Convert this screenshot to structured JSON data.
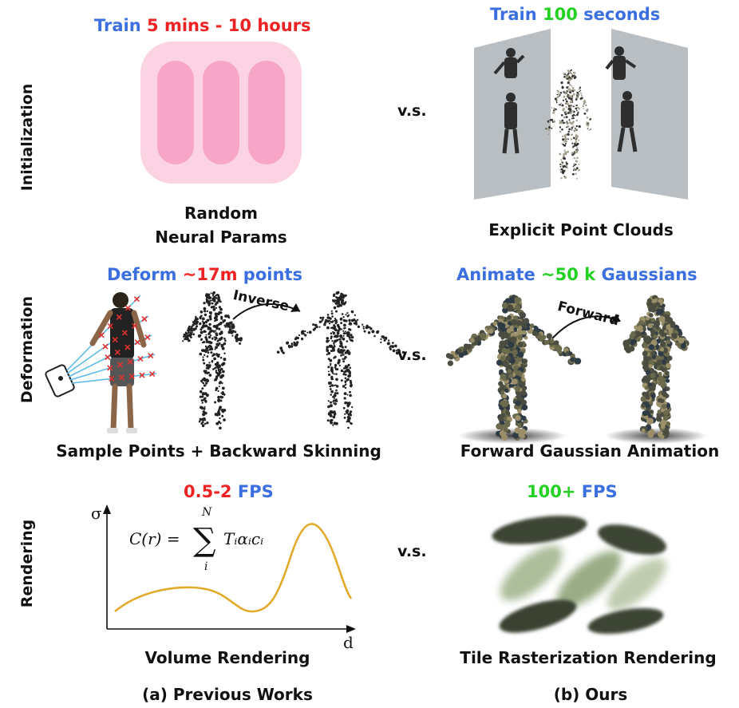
{
  "row_labels": {
    "initialization": "Initialization",
    "deformation": "Deformation",
    "rendering": "Rendering"
  },
  "vs": "v.s.",
  "init": {
    "left_header": {
      "p1": "Train ",
      "p2": "5 mins - 10 hours"
    },
    "left_caption": {
      "line1": "Random",
      "line2": "Neural Params"
    },
    "right_header": {
      "p1": "Train ",
      "p2": "100",
      "p3": " seconds"
    },
    "right_caption": "Explicit Point Clouds"
  },
  "deform": {
    "left_header": {
      "p1": "Deform ",
      "p2": "~17m",
      "p3": " points"
    },
    "left_arrow_label": "Inverse",
    "left_caption": "Sample Points + Backward Skinning",
    "right_header": {
      "p1": "Animate ",
      "p2": "~50 k",
      "p3": " Gaussians"
    },
    "right_arrow_label": "Forward",
    "right_caption": "Forward Gaussian Animation"
  },
  "render": {
    "left_header": {
      "p1": "0.5-2",
      "p2": " FPS"
    },
    "axis_y": "σ",
    "axis_x": "d",
    "equation": {
      "lhs": "C(r) =",
      "sum_top": "N",
      "sum_bottom": "i",
      "term": "Tᵢαᵢcᵢ"
    },
    "left_caption": "Volume Rendering",
    "right_header": {
      "p1": "100+",
      "p2": " FPS"
    },
    "right_caption": "Tile Rasterization Rendering"
  },
  "bottom": {
    "left": "(a) Previous Works",
    "right": "(b) Ours"
  },
  "colors": {
    "blue": "#3b6fe0",
    "red": "#ee2222",
    "green": "#22d122",
    "pink_outer": "#fcd3e3",
    "pink_inner": "#f7a6c8",
    "panel_gray": "#b8bec1",
    "curve": "#e2aa2a",
    "dark_gaussian": "#3e4536",
    "light_gaussian": "#9fb289"
  }
}
